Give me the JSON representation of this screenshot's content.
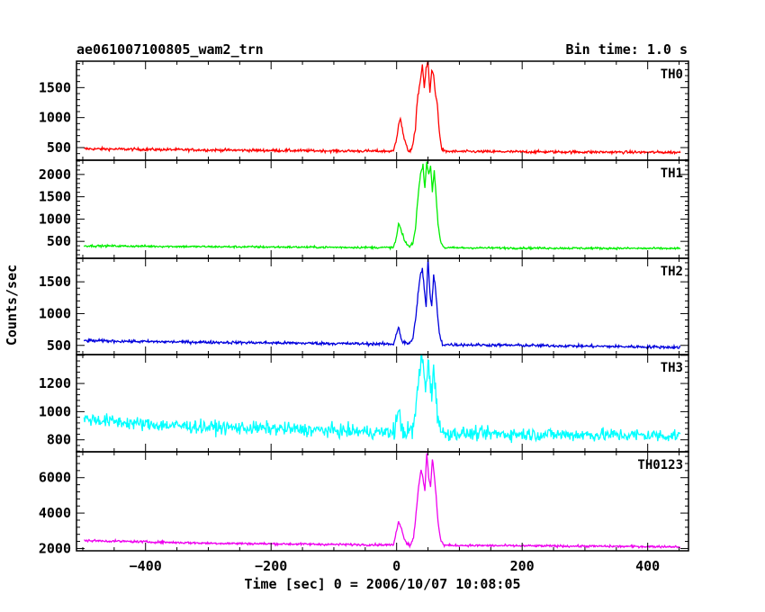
{
  "chart_data": {
    "type": "line",
    "title_left": "ae061007100805_wam2_trn",
    "title_right": "Bin time: 1.0 s",
    "xlabel": "Time [sec] 0 = 2006/10/07 10:08:05",
    "ylabel": "Counts/sec",
    "xlim": [
      -510,
      465
    ],
    "x_ticks": [
      -400,
      -200,
      0,
      200,
      400
    ],
    "x_tick_labels": [
      "−400",
      "−200",
      "0",
      "200",
      "400"
    ],
    "data_range": [
      -498,
      452
    ],
    "panels": [
      {
        "name": "TH0",
        "color": "#ff0000",
        "ylim": [
          290,
          1940
        ],
        "y_ticks": [
          500,
          1000,
          1500
        ],
        "y_tick_labels": [
          "500",
          "1000",
          "1500"
        ],
        "baseline_points": [
          [
            -498,
            480
          ],
          [
            -300,
            460
          ],
          [
            -100,
            445
          ],
          [
            0,
            440
          ],
          [
            200,
            430
          ],
          [
            452,
            420
          ]
        ],
        "noise": 22,
        "burst_points": [
          [
            -5,
            440
          ],
          [
            0,
            650
          ],
          [
            3,
            900
          ],
          [
            6,
            1000
          ],
          [
            9,
            800
          ],
          [
            12,
            650
          ],
          [
            16,
            500
          ],
          [
            20,
            440
          ],
          [
            25,
            500
          ],
          [
            30,
            800
          ],
          [
            33,
            1300
          ],
          [
            36,
            1500
          ],
          [
            39,
            1700
          ],
          [
            41,
            1900
          ],
          [
            44,
            1500
          ],
          [
            47,
            1800
          ],
          [
            50,
            1940
          ],
          [
            53,
            1400
          ],
          [
            56,
            1800
          ],
          [
            59,
            1700
          ],
          [
            62,
            1400
          ],
          [
            65,
            1200
          ],
          [
            68,
            800
          ],
          [
            71,
            500
          ],
          [
            75,
            450
          ]
        ]
      },
      {
        "name": "TH1",
        "color": "#00ee00",
        "ylim": [
          120,
          2320
        ],
        "y_ticks": [
          500,
          1000,
          1500,
          2000
        ],
        "y_tick_labels": [
          "500",
          "1000",
          "1500",
          "2000"
        ],
        "baseline_points": [
          [
            -498,
            400
          ],
          [
            -300,
            380
          ],
          [
            0,
            360
          ],
          [
            200,
            350
          ],
          [
            452,
            340
          ]
        ],
        "noise": 22,
        "burst_points": [
          [
            -5,
            360
          ],
          [
            0,
            600
          ],
          [
            3,
            900
          ],
          [
            6,
            800
          ],
          [
            9,
            650
          ],
          [
            13,
            500
          ],
          [
            20,
            380
          ],
          [
            26,
            450
          ],
          [
            30,
            800
          ],
          [
            34,
            1500
          ],
          [
            38,
            2000
          ],
          [
            42,
            2200
          ],
          [
            45,
            1700
          ],
          [
            48,
            2300
          ],
          [
            51,
            2000
          ],
          [
            54,
            2200
          ],
          [
            57,
            1600
          ],
          [
            60,
            2100
          ],
          [
            63,
            1500
          ],
          [
            66,
            900
          ],
          [
            70,
            500
          ],
          [
            75,
            380
          ]
        ]
      },
      {
        "name": "TH2",
        "color": "#0000dd",
        "ylim": [
          355,
          1870
        ],
        "y_ticks": [
          500,
          1000,
          1500
        ],
        "y_tick_labels": [
          "500",
          "1000",
          "1500"
        ],
        "baseline_points": [
          [
            -498,
            575
          ],
          [
            -400,
            560
          ],
          [
            -200,
            540
          ],
          [
            0,
            520
          ],
          [
            200,
            500
          ],
          [
            452,
            470
          ]
        ],
        "noise": 22,
        "burst_points": [
          [
            -5,
            520
          ],
          [
            0,
            700
          ],
          [
            3,
            800
          ],
          [
            6,
            650
          ],
          [
            10,
            550
          ],
          [
            18,
            520
          ],
          [
            26,
            600
          ],
          [
            30,
            900
          ],
          [
            34,
            1300
          ],
          [
            38,
            1600
          ],
          [
            41,
            1700
          ],
          [
            44,
            1400
          ],
          [
            47,
            1100
          ],
          [
            50,
            1870
          ],
          [
            53,
            1300
          ],
          [
            56,
            1100
          ],
          [
            59,
            1600
          ],
          [
            62,
            1400
          ],
          [
            65,
            1000
          ],
          [
            68,
            700
          ],
          [
            72,
            550
          ]
        ]
      },
      {
        "name": "TH3",
        "color": "#00ffff",
        "ylim": [
          715,
          1405
        ],
        "y_ticks": [
          800,
          1000,
          1200
        ],
        "y_tick_labels": [
          "800",
          "1000",
          "1200"
        ],
        "baseline_points": [
          [
            -498,
            950
          ],
          [
            -400,
            910
          ],
          [
            -300,
            890
          ],
          [
            -200,
            880
          ],
          [
            0,
            850
          ],
          [
            200,
            840
          ],
          [
            452,
            830
          ]
        ],
        "noise": 45,
        "burst_points": [
          [
            -5,
            850
          ],
          [
            0,
            950
          ],
          [
            3,
            1000
          ],
          [
            6,
            920
          ],
          [
            12,
            860
          ],
          [
            20,
            850
          ],
          [
            28,
            900
          ],
          [
            32,
            1100
          ],
          [
            36,
            1250
          ],
          [
            40,
            1400
          ],
          [
            43,
            1300
          ],
          [
            46,
            1150
          ],
          [
            50,
            1380
          ],
          [
            53,
            1200
          ],
          [
            56,
            1100
          ],
          [
            59,
            1350
          ],
          [
            62,
            1150
          ],
          [
            65,
            1000
          ],
          [
            70,
            880
          ]
        ]
      },
      {
        "name": "TH0123",
        "color": "#ee00ee",
        "ylim": [
          1870,
          7460
        ],
        "y_ticks": [
          2000,
          4000,
          6000
        ],
        "y_tick_labels": [
          "2000",
          "4000",
          "6000"
        ],
        "baseline_points": [
          [
            -498,
            2450
          ],
          [
            -300,
            2300
          ],
          [
            -100,
            2230
          ],
          [
            0,
            2200
          ],
          [
            200,
            2150
          ],
          [
            452,
            2100
          ]
        ],
        "noise": 60,
        "burst_points": [
          [
            -5,
            2200
          ],
          [
            0,
            3000
          ],
          [
            3,
            3600
          ],
          [
            6,
            3300
          ],
          [
            10,
            2800
          ],
          [
            16,
            2300
          ],
          [
            22,
            2200
          ],
          [
            27,
            2600
          ],
          [
            31,
            4000
          ],
          [
            35,
            5500
          ],
          [
            39,
            6500
          ],
          [
            42,
            6000
          ],
          [
            45,
            5200
          ],
          [
            48,
            7400
          ],
          [
            51,
            6000
          ],
          [
            54,
            5500
          ],
          [
            57,
            7000
          ],
          [
            60,
            6200
          ],
          [
            63,
            5000
          ],
          [
            66,
            3500
          ],
          [
            70,
            2500
          ],
          [
            75,
            2200
          ]
        ]
      }
    ]
  }
}
